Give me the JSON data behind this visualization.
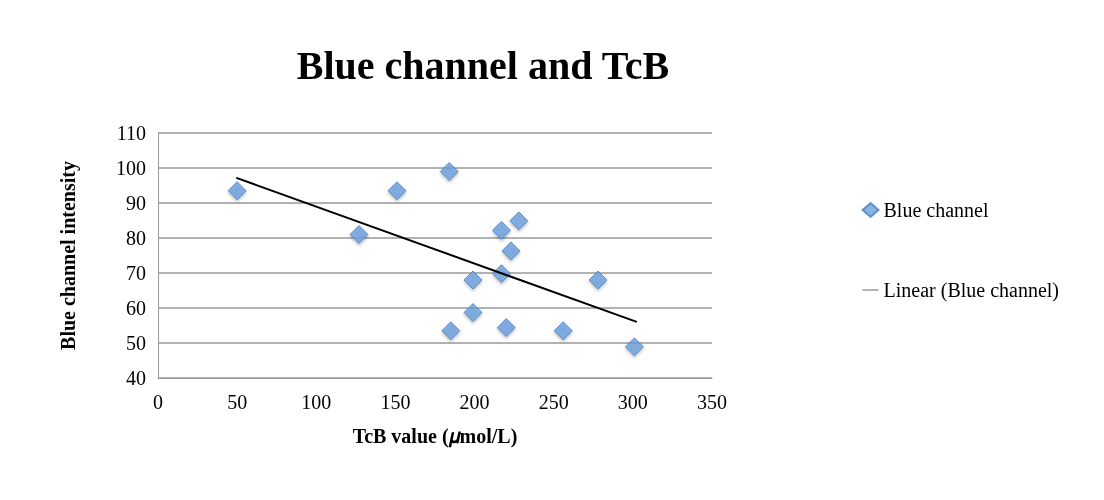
{
  "chart_data": {
    "type": "scatter",
    "title": "Blue channel and TcB",
    "xlabel": "TcB value (𝜇mol/L)",
    "ylabel": "Blue channel intensity",
    "xlim": [
      0,
      350
    ],
    "xticks": [
      0,
      50,
      100,
      150,
      200,
      250,
      300,
      350
    ],
    "ylim": [
      40,
      110
    ],
    "yticks": [
      40,
      50,
      60,
      70,
      80,
      90,
      100,
      110
    ],
    "grid": "y",
    "legend": "right",
    "marker": "diamond",
    "series": [
      {
        "name": "Blue channel",
        "color": "#6a9fdc",
        "x": [
          50,
          127,
          151,
          184,
          185,
          199,
          199,
          217,
          228,
          223,
          217,
          220,
          256,
          278,
          301
        ],
        "values": [
          93.5,
          81,
          93.5,
          99,
          53.5,
          68,
          58.7,
          82.2,
          84.9,
          76.3,
          69.8,
          54.4,
          53.5,
          68,
          48.9
        ]
      },
      {
        "name": "Linear (Blue channel)",
        "type": "line",
        "color": "#000000",
        "marker": "none",
        "line_style": "solid",
        "x": [
          50,
          302
        ],
        "values": [
          97.1,
          56.1
        ]
      }
    ]
  }
}
